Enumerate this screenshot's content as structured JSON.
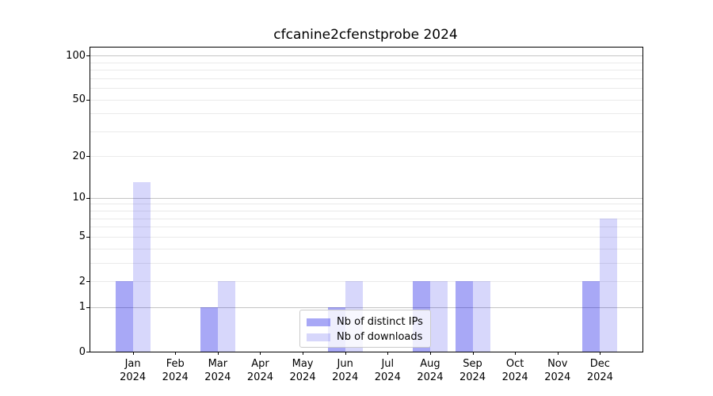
{
  "chart_data": {
    "type": "bar",
    "title": "cfcanine2cfenstprobe 2024",
    "categories": [
      "Jan",
      "Feb",
      "Mar",
      "Apr",
      "May",
      "Jun",
      "Jul",
      "Aug",
      "Sep",
      "Oct",
      "Nov",
      "Dec"
    ],
    "xtick_year": "2024",
    "series": [
      {
        "name": "Nb of distinct IPs",
        "color": "rgba(0,0,230,0.34)",
        "values": [
          2,
          0,
          1,
          0,
          0,
          1,
          0,
          2,
          2,
          0,
          0,
          2
        ]
      },
      {
        "name": "Nb of downloads",
        "color": "rgba(0,0,230,0.155)",
        "values": [
          13,
          0,
          2,
          0,
          0,
          2,
          0,
          2,
          2,
          0,
          0,
          7
        ]
      }
    ],
    "yscale": "log1p",
    "ylim": [
      0,
      113.5
    ],
    "yticks": [
      0,
      1,
      2,
      5,
      10,
      20,
      50,
      100
    ],
    "major_gridlines": [
      1,
      10,
      100
    ],
    "minor_gridlines": [
      2,
      3,
      4,
      5,
      6,
      7,
      8,
      9,
      20,
      30,
      40,
      50,
      60,
      70,
      80,
      90
    ],
    "legend_position": "lower center",
    "grid": true,
    "colors": {
      "axis": "#000000",
      "major_grid": "#c4c4c4",
      "minor_grid": "#eaeaea"
    }
  }
}
